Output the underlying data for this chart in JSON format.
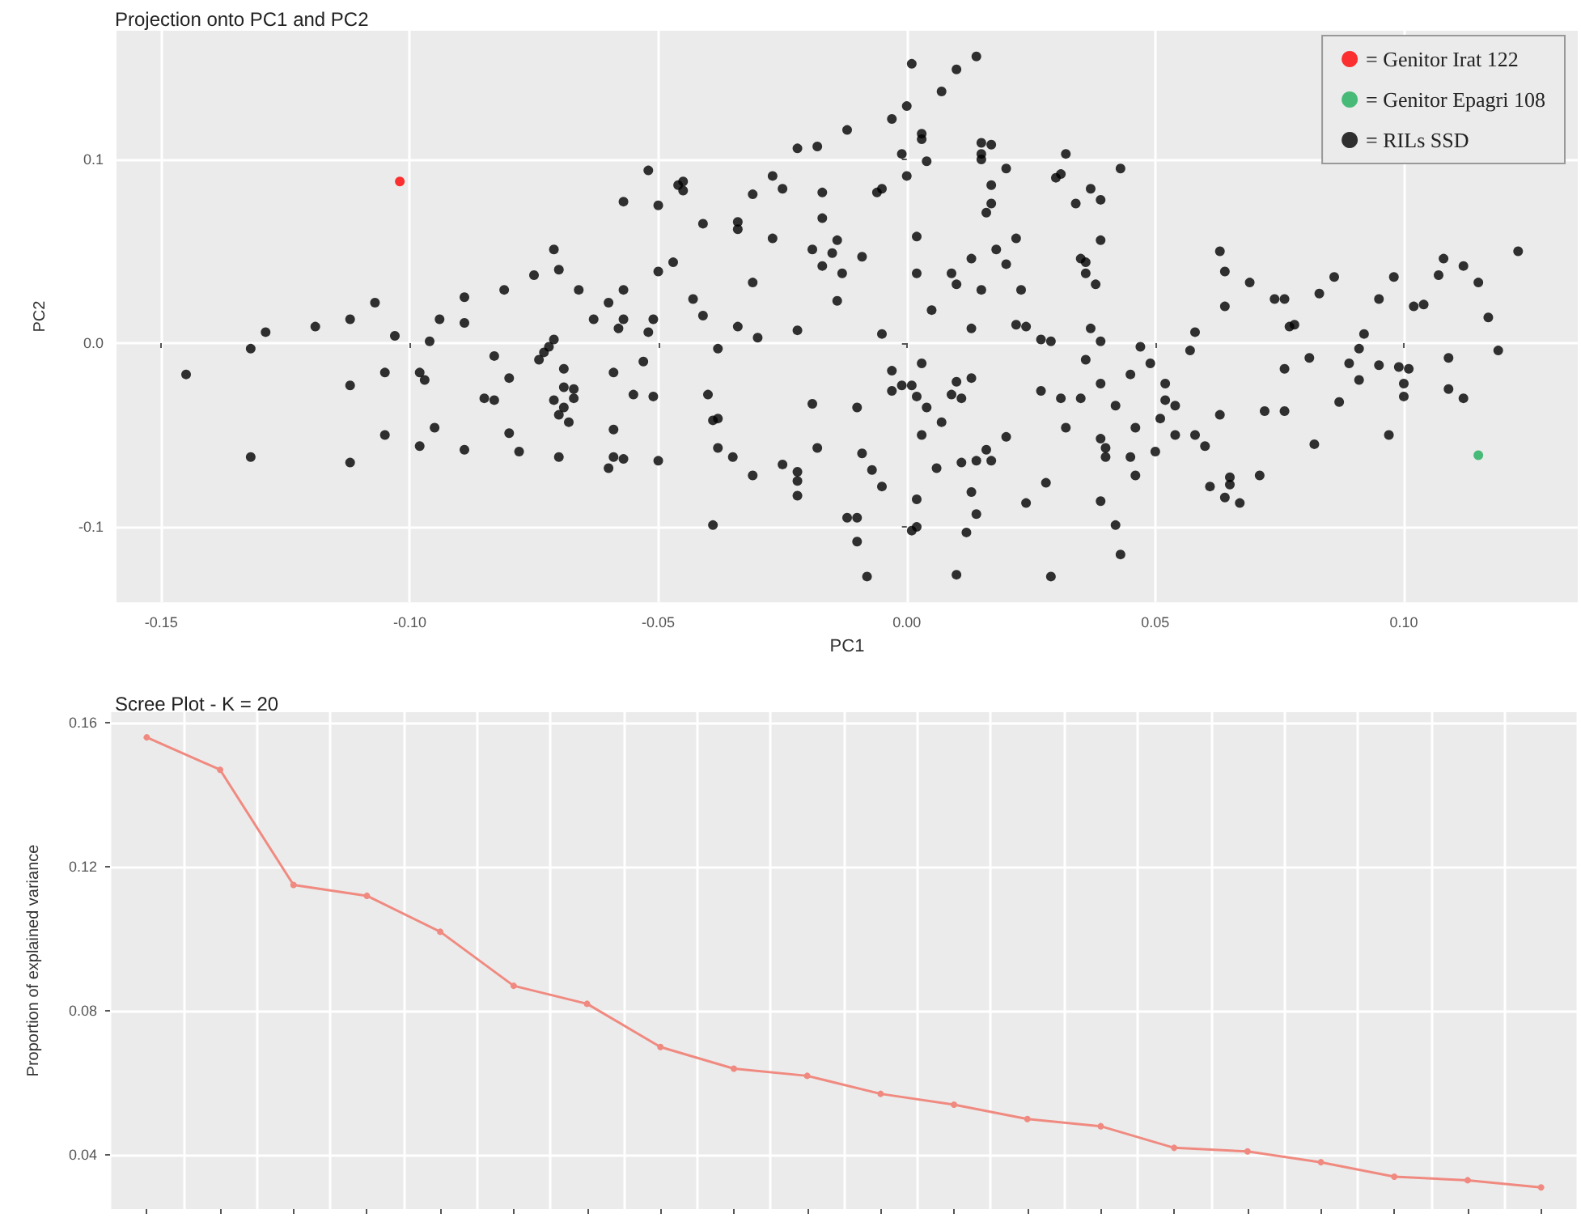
{
  "chart_data": [
    {
      "type": "scatter",
      "title": "Projection onto PC1 and PC2",
      "xlabel": "PC1",
      "ylabel": "PC2",
      "xlim": [
        -0.159,
        0.135
      ],
      "ylim": [
        -0.141,
        0.17
      ],
      "xticks": [
        {
          "value": -0.15,
          "label": "-0.15"
        },
        {
          "value": -0.1,
          "label": "-0.10"
        },
        {
          "value": -0.05,
          "label": "-0.05"
        },
        {
          "value": 0,
          "label": "0.00"
        },
        {
          "value": 0.05,
          "label": "0.05"
        },
        {
          "value": 0.1,
          "label": "0.10"
        }
      ],
      "yticks": [
        -0.1,
        {
          "value": 0,
          "label": "0.0"
        },
        0.1
      ],
      "grid": true,
      "legend": "top right",
      "marker": "circle",
      "series": [
        {
          "name": "= Genitor Irat 122",
          "color": "#ff0000",
          "x": [
            -0.102
          ],
          "values": [
            0.088
          ]
        },
        {
          "name": "= Genitor Epagri 108",
          "color": "#1fae5b",
          "x": [
            0.115
          ],
          "values": [
            -0.061
          ]
        },
        {
          "name": "= RILs SSD",
          "color": "#000000",
          "x": [
            -0.145,
            -0.132,
            -0.129,
            -0.132,
            -0.119,
            -0.112,
            -0.112,
            -0.112,
            -0.107,
            -0.105,
            -0.105,
            -0.103,
            -0.098,
            -0.097,
            -0.096,
            -0.098,
            -0.095,
            -0.094,
            -0.089,
            -0.089,
            -0.089,
            -0.085,
            -0.083,
            -0.083,
            -0.081,
            -0.08,
            -0.08,
            -0.078,
            -0.075,
            -0.074,
            -0.073,
            -0.072,
            -0.071,
            -0.071,
            -0.07,
            -0.069,
            -0.069,
            -0.067,
            -0.071,
            -0.067,
            -0.069,
            -0.07,
            -0.068,
            -0.07,
            -0.066,
            -0.063,
            -0.06,
            -0.058,
            -0.057,
            -0.057,
            -0.059,
            -0.055,
            -0.053,
            -0.052,
            -0.059,
            -0.059,
            -0.057,
            -0.06,
            -0.051,
            -0.051,
            -0.05,
            -0.057,
            -0.052,
            -0.05,
            -0.05,
            -0.047,
            -0.046,
            -0.045,
            -0.045,
            -0.043,
            -0.041,
            -0.041,
            -0.04,
            -0.039,
            -0.038,
            -0.038,
            -0.038,
            -0.039,
            -0.035,
            -0.034,
            -0.034,
            -0.034,
            -0.031,
            -0.031,
            -0.03,
            -0.031,
            -0.027,
            -0.027,
            -0.025,
            -0.025,
            -0.022,
            -0.022,
            -0.022,
            -0.022,
            -0.022,
            -0.018,
            -0.017,
            -0.017,
            -0.019,
            -0.015,
            -0.017,
            -0.014,
            -0.013,
            -0.014,
            -0.009,
            -0.012,
            -0.003,
            0.0,
            0.001,
            0.007,
            0.01,
            0.014,
            -0.001,
            0.003,
            0.003,
            0.0,
            0.004,
            -0.005,
            -0.006,
            0.015,
            0.017,
            0.015,
            0.015,
            0.02,
            0.017,
            0.017,
            0.016,
            0.032,
            0.031,
            0.03,
            0.043,
            0.037,
            0.039,
            0.034,
            0.002,
            0.022,
            0.039,
            0.018,
            0.02,
            0.013,
            0.009,
            0.01,
            0.015,
            0.002,
            0.023,
            0.035,
            0.036,
            0.036,
            0.038,
            0.005,
            0.013,
            -0.005,
            0.022,
            0.024,
            0.037,
            0.027,
            0.029,
            0.039,
            0.003,
            -0.003,
            -0.001,
            0.001,
            -0.003,
            0.002,
            0.004,
            0.009,
            0.01,
            0.013,
            0.011,
            -0.019,
            -0.01,
            0.007,
            0.003,
            -0.018,
            -0.009,
            -0.007,
            -0.005,
            0.006,
            0.011,
            0.014,
            0.017,
            0.016,
            0.02,
            0.002,
            0.013,
            -0.012,
            -0.01,
            -0.01,
            -0.008,
            0.001,
            0.002,
            0.014,
            0.012,
            0.01,
            0.024,
            0.029,
            0.028,
            0.027,
            0.031,
            0.035,
            0.032,
            0.036,
            0.039,
            0.042,
            0.039,
            0.04,
            0.04,
            0.045,
            0.047,
            0.049,
            0.052,
            0.052,
            0.054,
            0.051,
            0.046,
            0.054,
            0.058,
            0.06,
            0.05,
            0.045,
            0.046,
            0.039,
            0.042,
            0.043,
            0.057,
            0.058,
            0.061,
            0.064,
            0.065,
            0.065,
            0.067,
            0.071,
            0.063,
            0.072,
            0.076,
            0.063,
            0.064,
            0.064,
            0.069,
            0.074,
            0.076,
            0.077,
            0.078,
            0.076,
            0.081,
            0.083,
            0.086,
            0.082,
            0.087,
            0.089,
            0.091,
            0.092,
            0.091,
            0.095,
            0.095,
            0.098,
            0.099,
            0.101,
            0.1,
            0.1,
            0.097,
            0.102,
            0.104,
            0.108,
            0.107,
            0.112,
            0.115,
            0.109,
            0.109,
            0.112,
            0.117,
            0.119,
            0.123
          ],
          "values": [
            -0.017,
            -0.003,
            0.006,
            -0.062,
            0.009,
            0.013,
            -0.023,
            -0.065,
            0.022,
            -0.016,
            -0.05,
            0.004,
            -0.016,
            -0.02,
            0.001,
            -0.056,
            -0.046,
            0.013,
            0.025,
            0.011,
            -0.058,
            -0.03,
            -0.007,
            -0.031,
            0.029,
            -0.049,
            -0.019,
            -0.059,
            0.037,
            -0.009,
            -0.005,
            -0.002,
            0.002,
            0.051,
            0.04,
            -0.014,
            -0.024,
            -0.025,
            -0.031,
            -0.03,
            -0.035,
            -0.039,
            -0.043,
            -0.062,
            0.029,
            0.013,
            0.022,
            0.008,
            0.029,
            0.013,
            -0.016,
            -0.028,
            -0.01,
            0.006,
            -0.047,
            -0.062,
            -0.063,
            -0.068,
            0.013,
            -0.029,
            -0.064,
            0.077,
            0.094,
            0.075,
            0.039,
            0.044,
            0.086,
            0.088,
            0.083,
            0.024,
            0.015,
            0.065,
            -0.028,
            -0.042,
            -0.041,
            -0.003,
            -0.057,
            -0.099,
            -0.062,
            0.066,
            0.062,
            0.009,
            0.081,
            0.033,
            0.003,
            -0.072,
            0.091,
            0.057,
            0.084,
            -0.066,
            0.007,
            0.106,
            -0.07,
            -0.075,
            -0.083,
            0.107,
            0.082,
            0.068,
            0.051,
            0.049,
            0.042,
            0.056,
            0.038,
            0.023,
            0.047,
            0.116,
            0.122,
            0.129,
            0.152,
            0.137,
            0.149,
            0.156,
            0.103,
            0.114,
            0.111,
            0.091,
            0.099,
            0.084,
            0.082,
            0.109,
            0.108,
            0.103,
            0.1,
            0.095,
            0.086,
            0.076,
            0.071,
            0.103,
            0.092,
            0.09,
            0.095,
            0.084,
            0.078,
            0.076,
            0.058,
            0.057,
            0.056,
            0.051,
            0.043,
            0.046,
            0.038,
            0.032,
            0.029,
            0.038,
            0.029,
            0.046,
            0.044,
            0.038,
            0.032,
            0.018,
            0.008,
            0.005,
            0.01,
            0.009,
            0.008,
            0.002,
            0.001,
            0.001,
            -0.011,
            -0.015,
            -0.023,
            -0.023,
            -0.026,
            -0.029,
            -0.035,
            -0.028,
            -0.021,
            -0.019,
            -0.03,
            -0.033,
            -0.035,
            -0.043,
            -0.05,
            -0.057,
            -0.06,
            -0.069,
            -0.078,
            -0.068,
            -0.065,
            -0.064,
            -0.064,
            -0.058,
            -0.051,
            -0.085,
            -0.081,
            -0.095,
            -0.095,
            -0.108,
            -0.127,
            -0.102,
            -0.1,
            -0.093,
            -0.103,
            -0.126,
            -0.087,
            -0.127,
            -0.076,
            -0.026,
            -0.03,
            -0.03,
            -0.046,
            -0.009,
            -0.022,
            -0.034,
            -0.052,
            -0.057,
            -0.062,
            -0.017,
            -0.002,
            -0.011,
            -0.022,
            -0.031,
            -0.034,
            -0.041,
            -0.046,
            -0.05,
            -0.05,
            -0.056,
            -0.059,
            -0.062,
            -0.072,
            -0.086,
            -0.099,
            -0.115,
            -0.004,
            0.006,
            -0.078,
            -0.084,
            -0.073,
            -0.077,
            -0.087,
            -0.072,
            -0.039,
            -0.037,
            -0.037,
            0.05,
            0.039,
            0.02,
            0.033,
            0.024,
            0.024,
            0.009,
            0.01,
            -0.014,
            -0.008,
            0.027,
            0.036,
            -0.055,
            -0.032,
            -0.011,
            -0.003,
            0.005,
            -0.02,
            0.024,
            -0.012,
            0.036,
            -0.013,
            -0.014,
            -0.022,
            -0.029,
            -0.05,
            0.02,
            0.021,
            0.046,
            0.037,
            0.042,
            0.033,
            -0.008,
            -0.025,
            -0.03,
            0.014,
            -0.004,
            0.05
          ]
        }
      ]
    },
    {
      "type": "line",
      "title": "Scree Plot - K = 20",
      "ylabel": "Proportion of explained variance",
      "ylim": [
        0.025,
        0.163
      ],
      "yticks": [
        0.04,
        0.08,
        0.12,
        0.16
      ],
      "grid": true,
      "marker": "circle",
      "categories": [
        null,
        null,
        null,
        null,
        null,
        null,
        null,
        null,
        null,
        null,
        null,
        null,
        null,
        null,
        null,
        null,
        null,
        null,
        null,
        null
      ],
      "series": [
        {
          "color": "#f08a80",
          "values": [
            0.156,
            0.147,
            0.115,
            0.112,
            0.102,
            0.087,
            0.082,
            0.07,
            0.064,
            0.062,
            0.057,
            0.054,
            0.05,
            0.048,
            0.042,
            0.041,
            0.038,
            0.034,
            0.033,
            0.031
          ]
        }
      ]
    }
  ]
}
